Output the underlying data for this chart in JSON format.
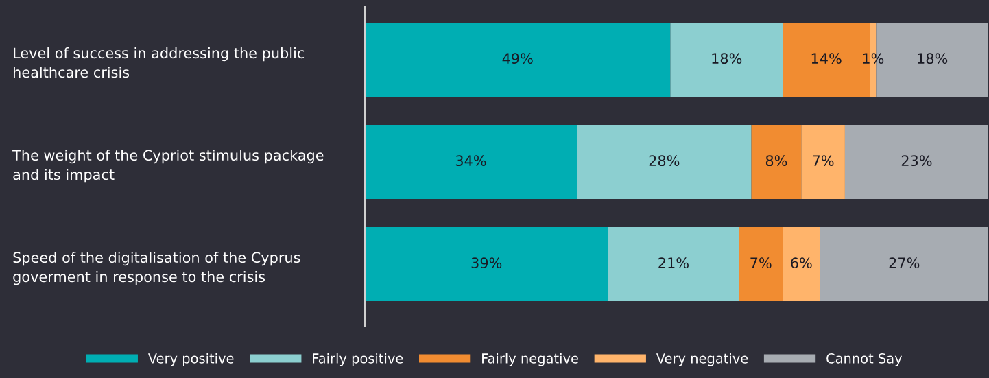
{
  "chart_data": {
    "type": "bar",
    "orientation": "horizontal",
    "stacked": true,
    "categories": [
      "Level of success in addressing the public\nhealthcare crisis",
      "The weight of the Cypriot stimulus package\nand its impact",
      "Speed of the digitalisation of the Cyprus\ngoverment in response to the crisis"
    ],
    "series": [
      {
        "name": "Very positive",
        "color": "#00aeb3",
        "values": [
          49,
          34,
          39
        ],
        "value_labels": [
          "49%",
          "34%",
          "39%"
        ]
      },
      {
        "name": "Fairly positive",
        "color": "#8ccfd0",
        "values": [
          18,
          28,
          21
        ],
        "value_labels": [
          "18%",
          "28%",
          "21%"
        ]
      },
      {
        "name": "Fairly negative",
        "color": "#f18c31",
        "values": [
          14,
          8,
          7
        ],
        "value_labels": [
          "14%",
          "8%",
          "7%"
        ]
      },
      {
        "name": "Very negative",
        "color": "#ffb46b",
        "values": [
          1,
          7,
          6
        ],
        "value_labels": [
          "1%",
          "7%",
          "6%"
        ]
      },
      {
        "name": "Cannot Say",
        "color": "#a7acb2",
        "values": [
          18,
          23,
          27
        ],
        "value_labels": [
          "18%",
          "23%",
          "27%"
        ]
      }
    ],
    "xlim": [
      0,
      100
    ],
    "tick_labels": "y",
    "grid": false,
    "legend": "bottom"
  }
}
